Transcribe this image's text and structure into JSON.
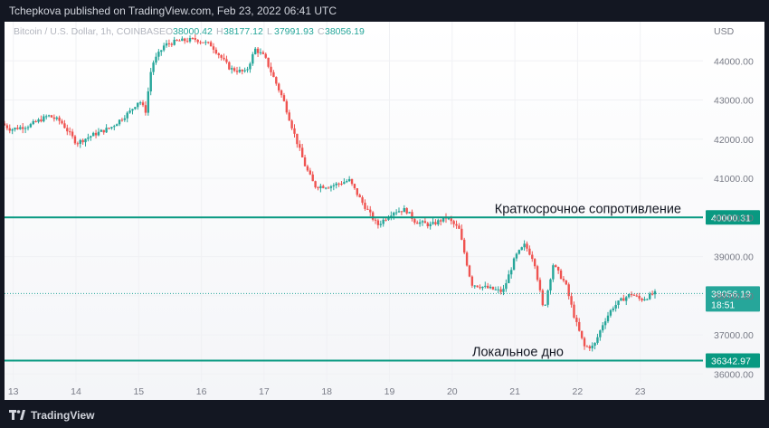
{
  "header": {
    "text": "Tchepkova published on TradingView.com, Feb 23, 2022 06:41 UTC"
  },
  "footer": {
    "brand": "TradingView"
  },
  "chart_data": {
    "type": "candlestick",
    "symbol_line": "Bitcoin / U.S. Dollar, 1h, COINBASE",
    "ohlc": [
      {
        "label": "O",
        "value": "38000.42"
      },
      {
        "label": "H",
        "value": "38177.12"
      },
      {
        "label": "L",
        "value": "37991.93"
      },
      {
        "label": "C",
        "value": "38056.19"
      }
    ],
    "currency": "USD",
    "y_axis": {
      "min": 35800,
      "max": 45000,
      "ticks": [
        36000,
        37000,
        38000,
        39000,
        40000,
        41000,
        42000,
        43000,
        44000
      ],
      "tick_labels": [
        "36000.00",
        "37000.00",
        "38000.00",
        "39000.00",
        "40000.00",
        "41000.00",
        "42000.00",
        "43000.00",
        "44000.00"
      ]
    },
    "x_axis": {
      "start_day": 12.86,
      "end_day": 24.0,
      "tick_days": [
        13,
        14,
        15,
        16,
        17,
        18,
        19,
        20,
        21,
        22,
        23
      ],
      "tick_labels": [
        "13",
        "14",
        "15",
        "16",
        "17",
        "18",
        "19",
        "20",
        "21",
        "22",
        "23"
      ]
    },
    "levels": [
      {
        "value": 40000.31,
        "label": "Краткосрочное сопротивление",
        "tag": "40000.31"
      },
      {
        "value": 36342.97,
        "label": "Локальное дно",
        "tag": "36342.97"
      }
    ],
    "last_price": {
      "value": 38056.19,
      "tag": "38056.19",
      "countdown": "18:51"
    },
    "colors": {
      "up": "#26a69a",
      "down": "#ef5350",
      "level": "#089981"
    },
    "path": [
      [
        12.86,
        42400
      ],
      [
        13.0,
        42250
      ],
      [
        13.3,
        42350
      ],
      [
        13.6,
        42600
      ],
      [
        13.8,
        42450
      ],
      [
        14.05,
        41900
      ],
      [
        14.3,
        42100
      ],
      [
        14.6,
        42300
      ],
      [
        14.9,
        42700
      ],
      [
        15.05,
        43000
      ],
      [
        15.15,
        42700
      ],
      [
        15.25,
        43900
      ],
      [
        15.45,
        44400
      ],
      [
        15.65,
        44500
      ],
      [
        15.95,
        44550
      ],
      [
        16.2,
        44400
      ],
      [
        16.5,
        43800
      ],
      [
        16.75,
        43700
      ],
      [
        16.9,
        44300
      ],
      [
        17.05,
        44100
      ],
      [
        17.35,
        43000
      ],
      [
        17.55,
        42000
      ],
      [
        17.7,
        41300
      ],
      [
        17.85,
        40800
      ],
      [
        18.1,
        40800
      ],
      [
        18.4,
        40950
      ],
      [
        18.6,
        40400
      ],
      [
        18.85,
        39800
      ],
      [
        19.1,
        40150
      ],
      [
        19.3,
        40200
      ],
      [
        19.45,
        39900
      ],
      [
        19.7,
        39800
      ],
      [
        19.95,
        40000
      ],
      [
        20.15,
        39700
      ],
      [
        20.35,
        38300
      ],
      [
        20.6,
        38200
      ],
      [
        20.85,
        38100
      ],
      [
        21.05,
        39000
      ],
      [
        21.2,
        39300
      ],
      [
        21.35,
        38900
      ],
      [
        21.5,
        37600
      ],
      [
        21.65,
        38800
      ],
      [
        21.85,
        38300
      ],
      [
        22.0,
        37400
      ],
      [
        22.15,
        36700
      ],
      [
        22.3,
        36700
      ],
      [
        22.45,
        37300
      ],
      [
        22.6,
        37700
      ],
      [
        22.75,
        37900
      ],
      [
        22.9,
        38050
      ],
      [
        23.05,
        37900
      ],
      [
        23.2,
        38000
      ],
      [
        23.25,
        38056
      ]
    ]
  }
}
